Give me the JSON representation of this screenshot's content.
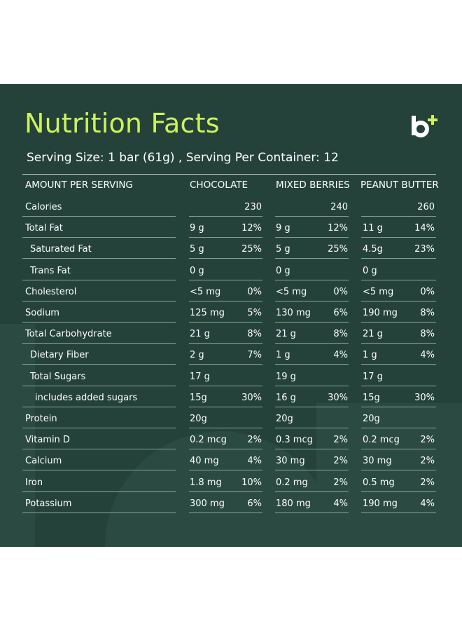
{
  "title": "Nutrition Facts",
  "serving": "Serving Size: 1 bar (61g) , Serving Per Container: 12",
  "columns": {
    "amount": "AMOUNT PER SERVING",
    "c1": "CHOCOLATE",
    "c2": "MIXED BERRIES",
    "c3": "PEANUT BUTTER"
  },
  "colors": {
    "panel": "#24423a",
    "accent": "#cdf25d",
    "text": "#ffffff"
  },
  "rows": [
    {
      "label": "Calories",
      "c1": {
        "a": "",
        "p": "230"
      },
      "c2": {
        "a": "",
        "p": "240"
      },
      "c3": {
        "a": "",
        "p": "260"
      }
    },
    {
      "label": "Total Fat",
      "c1": {
        "a": "9 g",
        "p": "12%"
      },
      "c2": {
        "a": "9 g",
        "p": "12%"
      },
      "c3": {
        "a": "11 g",
        "p": "14%"
      }
    },
    {
      "label": "Saturated Fat",
      "c1": {
        "a": "5 g",
        "p": "25%"
      },
      "c2": {
        "a": "5 g",
        "p": "25%"
      },
      "c3": {
        "a": "4.5g",
        "p": "23%"
      }
    },
    {
      "label": "Trans Fat",
      "c1": {
        "a": "0 g",
        "p": ""
      },
      "c2": {
        "a": "0 g",
        "p": ""
      },
      "c3": {
        "a": "0 g",
        "p": ""
      }
    },
    {
      "label": "Cholesterol",
      "c1": {
        "a": "<5 mg",
        "p": "0%"
      },
      "c2": {
        "a": "<5 mg",
        "p": "0%"
      },
      "c3": {
        "a": "<5 mg",
        "p": "0%"
      }
    },
    {
      "label": "Sodium",
      "c1": {
        "a": "125 mg",
        "p": "5%"
      },
      "c2": {
        "a": "130 mg",
        "p": "6%"
      },
      "c3": {
        "a": "190 mg",
        "p": "8%"
      }
    },
    {
      "label": "Total Carbohydrate",
      "c1": {
        "a": "21 g",
        "p": "8%"
      },
      "c2": {
        "a": "21 g",
        "p": "8%"
      },
      "c3": {
        "a": "21 g",
        "p": "8%"
      }
    },
    {
      "label": "Dietary Fiber",
      "c1": {
        "a": "2 g",
        "p": "7%"
      },
      "c2": {
        "a": "1 g",
        "p": "4%"
      },
      "c3": {
        "a": "1 g",
        "p": "4%"
      }
    },
    {
      "label": "Total Sugars",
      "c1": {
        "a": "17 g",
        "p": ""
      },
      "c2": {
        "a": "19 g",
        "p": ""
      },
      "c3": {
        "a": "17 g",
        "p": ""
      }
    },
    {
      "label": "includes added sugars",
      "c1": {
        "a": "15g",
        "p": "30%"
      },
      "c2": {
        "a": "16 g",
        "p": "30%"
      },
      "c3": {
        "a": "15g",
        "p": "30%"
      }
    },
    {
      "label": "Protein",
      "c1": {
        "a": "20g",
        "p": ""
      },
      "c2": {
        "a": "20g",
        "p": ""
      },
      "c3": {
        "a": "20g",
        "p": ""
      }
    },
    {
      "label": "Vitamin D",
      "c1": {
        "a": "0.2 mcg",
        "p": "2%"
      },
      "c2": {
        "a": "0.3 mcg",
        "p": "2%"
      },
      "c3": {
        "a": "0.2 mcg",
        "p": "2%"
      }
    },
    {
      "label": "Calcium",
      "c1": {
        "a": "40 mg",
        "p": "4%"
      },
      "c2": {
        "a": "30 mg",
        "p": "2%"
      },
      "c3": {
        "a": "30 mg",
        "p": "2%"
      }
    },
    {
      "label": "Iron",
      "c1": {
        "a": "1.8 mg",
        "p": "10%"
      },
      "c2": {
        "a": "0.2 mg",
        "p": "2%"
      },
      "c3": {
        "a": "0.5 mg",
        "p": "2%"
      }
    },
    {
      "label": "Potassium",
      "c1": {
        "a": "300 mg",
        "p": "6%"
      },
      "c2": {
        "a": "180 mg",
        "p": "4%"
      },
      "c3": {
        "a": "190 mg",
        "p": "4%"
      }
    }
  ]
}
